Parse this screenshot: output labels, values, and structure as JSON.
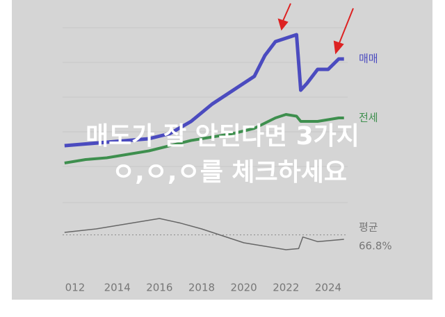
{
  "overlay": [
    "매도가 잘 안된다면 3가지",
    "ㅇ,ㅇ,ㅇ를 체크하세요"
  ],
  "chart_data": [
    {
      "type": "line",
      "ylim": [
        0,
        100
      ],
      "x": [
        2011.5,
        2012.5,
        2013.5,
        2014.5,
        2015.5,
        2016.5,
        2017.5,
        2018.5,
        2019.5,
        2020.5,
        2021,
        2021.5,
        2022,
        2022.5,
        2022.7,
        2023,
        2023.5,
        2024,
        2024.5,
        2024.75
      ],
      "series": [
        {
          "name": "매매",
          "color": "#4b4bbf",
          "values": [
            28,
            29,
            30,
            31,
            32,
            35,
            42,
            52,
            60,
            68,
            80,
            88,
            90,
            92,
            60,
            64,
            72,
            72,
            78,
            78
          ]
        },
        {
          "name": "전세",
          "color": "#3e8f4e",
          "values": [
            18,
            20,
            21,
            23,
            25,
            28,
            31,
            33,
            35,
            38,
            41,
            44,
            46,
            45,
            42,
            42,
            42,
            43,
            44,
            44
          ]
        }
      ]
    },
    {
      "type": "line",
      "ylim": [
        42,
        90
      ],
      "x": [
        2011.5,
        2013,
        2015,
        2016,
        2017,
        2018,
        2019,
        2020,
        2021,
        2022,
        2022.6,
        2022.8,
        2023.5,
        2024.75
      ],
      "series": [
        {
          "name": "평균",
          "color": "#666666",
          "values": [
            69,
            72,
            78,
            81,
            77,
            72,
            66,
            60,
            57,
            54,
            55,
            65,
            61,
            63
          ]
        }
      ],
      "average": {
        "value": 66.8,
        "label": "66.8%"
      },
      "xticks": [
        {
          "value": 2012,
          "label": "012"
        },
        2014,
        2016,
        2018,
        2020,
        2022,
        2024
      ]
    }
  ]
}
